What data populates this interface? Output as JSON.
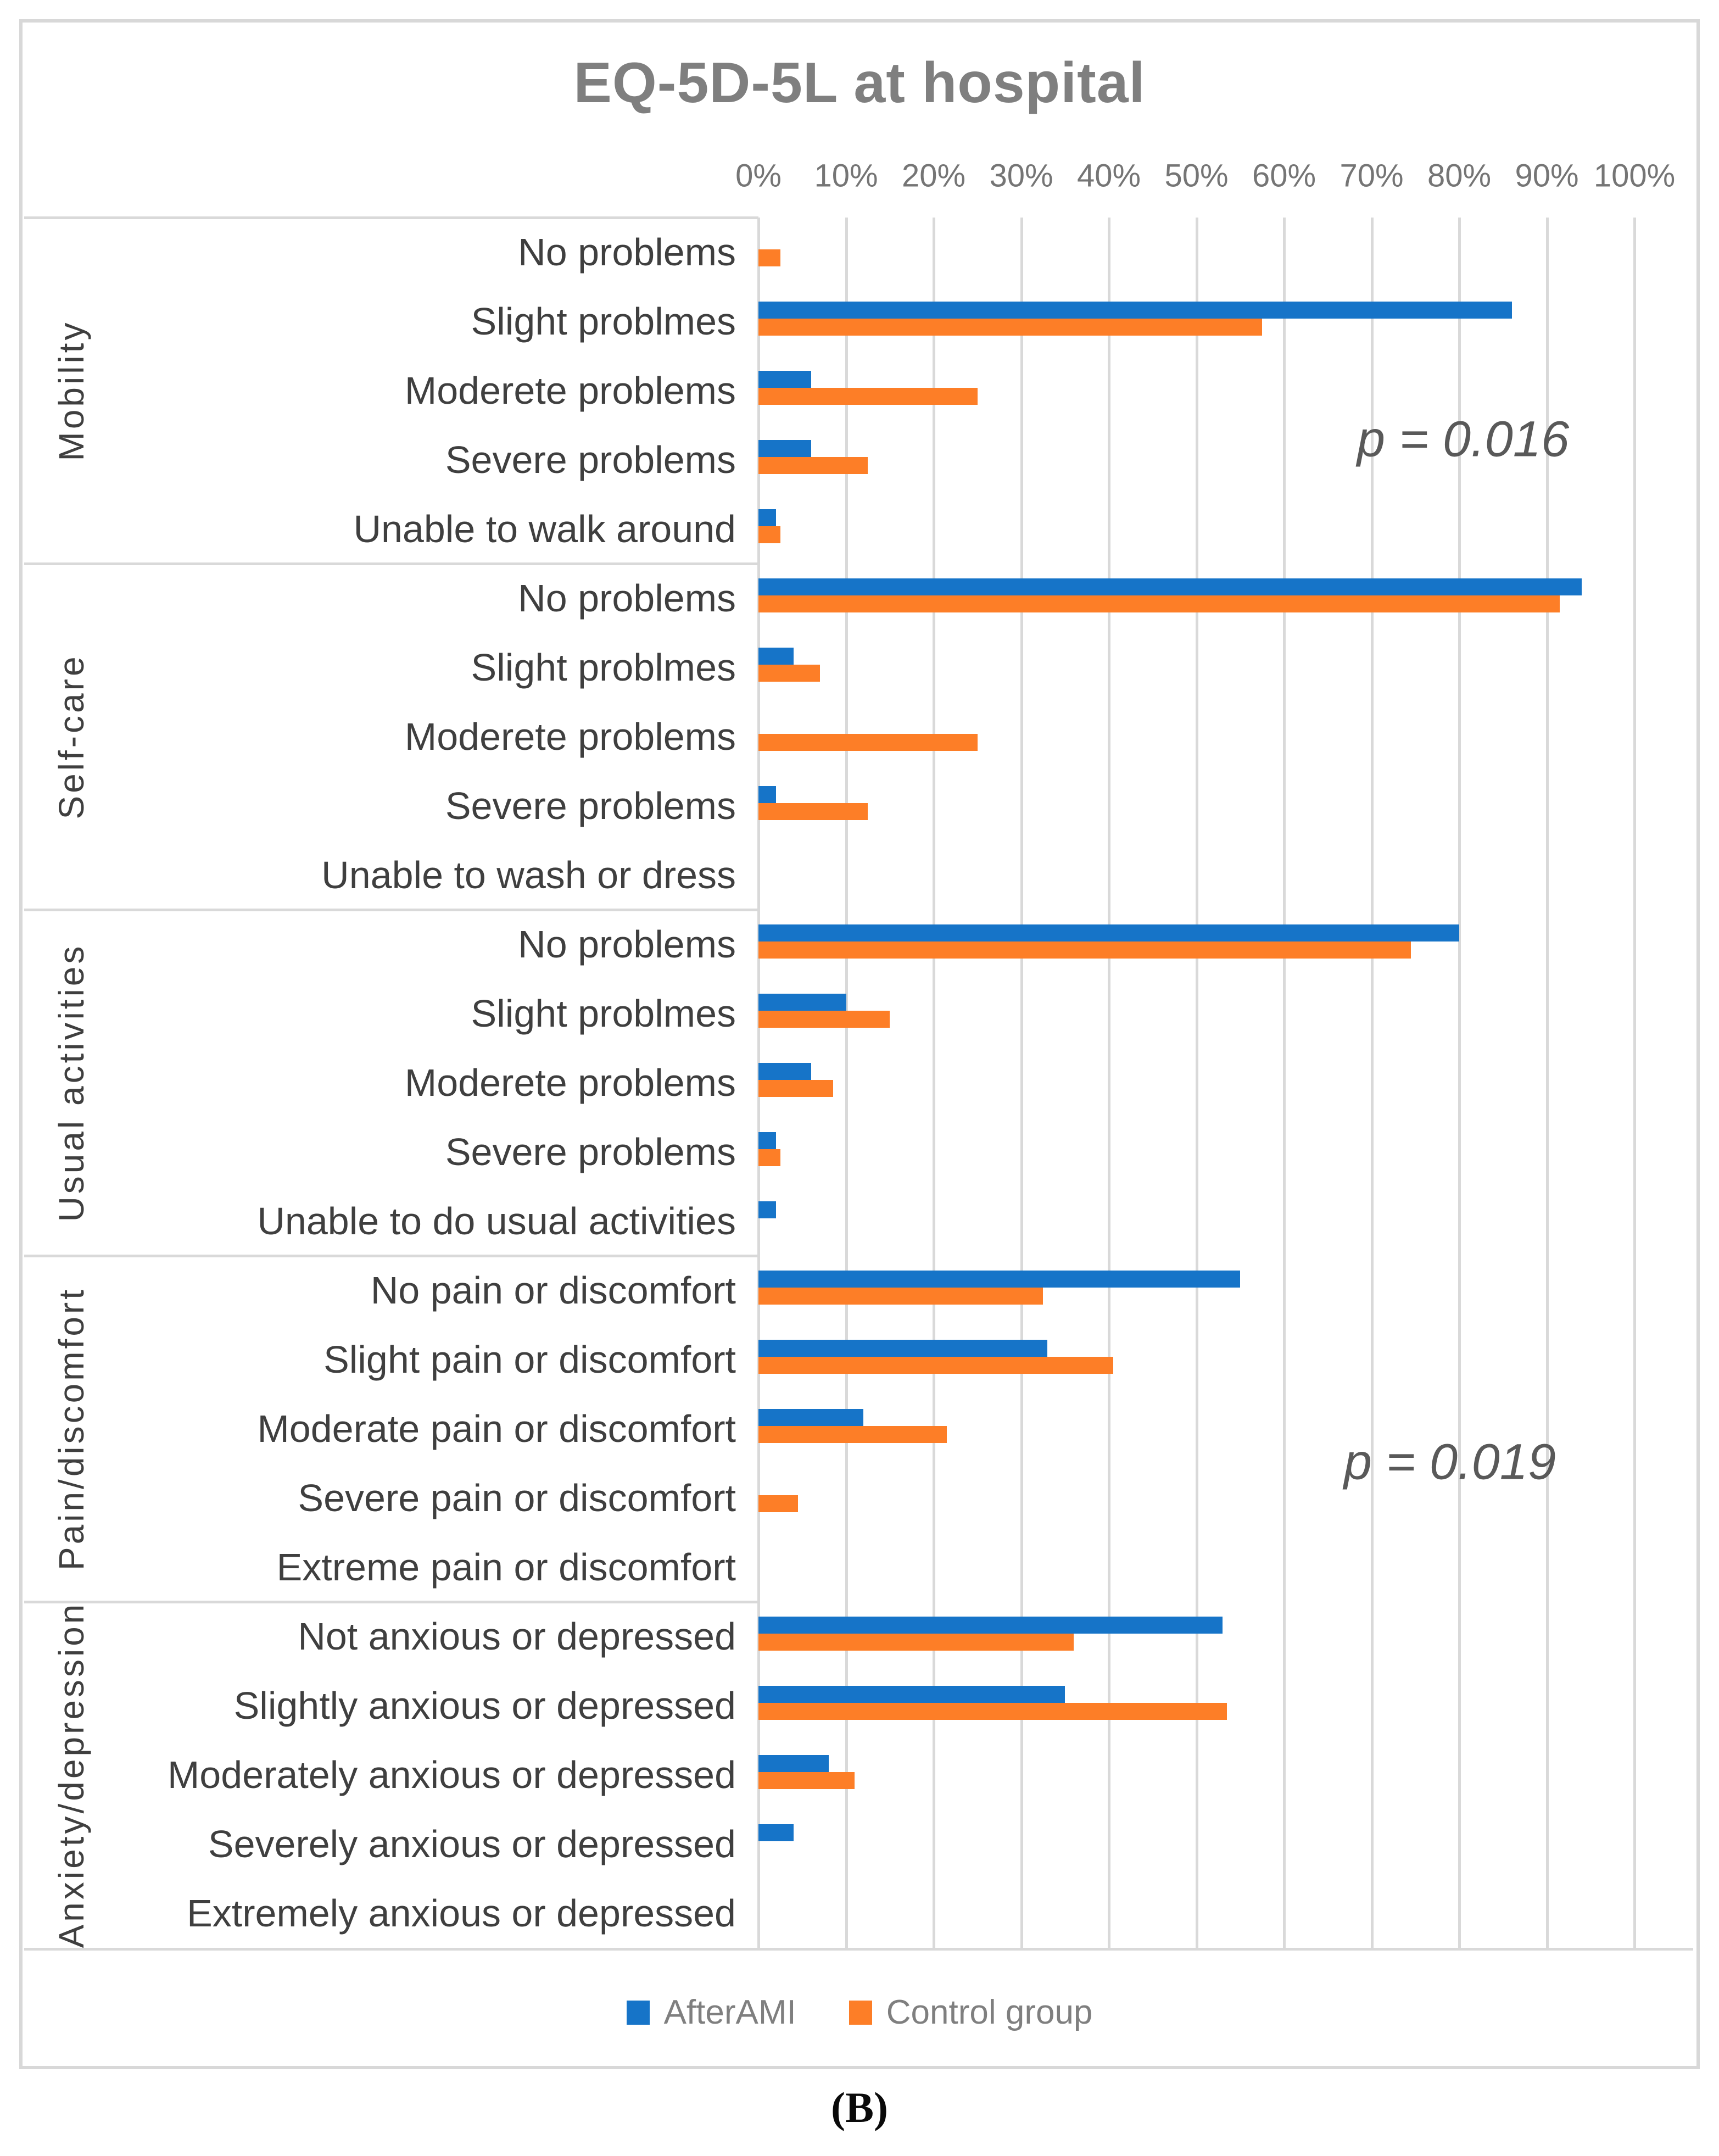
{
  "figure": {
    "panel_label": "(B)"
  },
  "colors": {
    "series_afterami": "#1674C8",
    "series_control": "#FD7E27",
    "gridline": "#D9D9D9",
    "border": "#D8D8D8",
    "title_text": "#7F7F7F",
    "category_text": "#3F3F3F",
    "tick_text": "#757575",
    "annotation_text": "#595959",
    "legend_text": "#7F7F7F"
  },
  "chart_data": {
    "type": "bar",
    "orientation": "horizontal",
    "title": "EQ-5D-5L at hospital",
    "value_axis": {
      "position": "top",
      "unit": "%",
      "min": 0,
      "max": 100,
      "tick_step": 10,
      "tick_labels": [
        "0%",
        "10%",
        "20%",
        "30%",
        "40%",
        "50%",
        "60%",
        "70%",
        "80%",
        "90%",
        "100%"
      ]
    },
    "grid": "vertical-only",
    "legend_position": "bottom",
    "series": [
      {
        "name": "AfterAMI",
        "color": "#1674C8"
      },
      {
        "name": "Control group",
        "color": "#FD7E27"
      }
    ],
    "sections": [
      {
        "dimension": "Mobility",
        "rows": [
          {
            "label": "No problems",
            "values": [
              0,
              2.5
            ]
          },
          {
            "label": "Slight problmes",
            "values": [
              86,
              57.5
            ]
          },
          {
            "label": "Moderete problems",
            "values": [
              6,
              25
            ]
          },
          {
            "label": "Severe problems",
            "values": [
              6,
              12.5
            ]
          },
          {
            "label": "Unable to walk around",
            "values": [
              2,
              2.5
            ]
          }
        ]
      },
      {
        "dimension": "Self-care",
        "rows": [
          {
            "label": "No problems",
            "values": [
              94,
              91.5
            ]
          },
          {
            "label": "Slight problmes",
            "values": [
              4,
              7
            ]
          },
          {
            "label": "Moderete problems",
            "values": [
              0,
              25
            ]
          },
          {
            "label": "Severe problems",
            "values": [
              2,
              12.5
            ]
          },
          {
            "label": "Unable to wash or dress",
            "values": [
              0,
              0
            ]
          }
        ]
      },
      {
        "dimension": "Usual activities",
        "rows": [
          {
            "label": "No problems",
            "values": [
              80,
              74.5
            ]
          },
          {
            "label": "Slight problmes",
            "values": [
              10,
              15
            ]
          },
          {
            "label": "Moderete problems",
            "values": [
              6,
              8.5
            ]
          },
          {
            "label": "Severe problems",
            "values": [
              2,
              2.5
            ]
          },
          {
            "label": "Unable to do usual activities",
            "values": [
              2,
              0
            ]
          }
        ]
      },
      {
        "dimension": "Pain/discomfort",
        "rows": [
          {
            "label": "No pain or discomfort",
            "values": [
              55,
              32.5
            ]
          },
          {
            "label": "Slight pain or discomfort",
            "values": [
              33,
              40.5
            ]
          },
          {
            "label": "Moderate pain or discomfort",
            "values": [
              12,
              21.5
            ]
          },
          {
            "label": "Severe pain or discomfort",
            "values": [
              0,
              4.5
            ]
          },
          {
            "label": "Extreme pain or discomfort",
            "values": [
              0,
              0
            ]
          }
        ]
      },
      {
        "dimension": "Anxiety/depression",
        "rows": [
          {
            "label": "Not anxious or depressed",
            "values": [
              53,
              36
            ]
          },
          {
            "label": "Slightly anxious or depressed",
            "values": [
              35,
              53.5
            ]
          },
          {
            "label": "Moderately anxious or depressed",
            "values": [
              8,
              11
            ]
          },
          {
            "label": "Severely anxious or depressed",
            "values": [
              4,
              0
            ]
          },
          {
            "label": "Extremely anxious or depressed",
            "values": [
              0,
              0
            ]
          }
        ]
      }
    ],
    "annotations": [
      {
        "text": "p = 0.016",
        "section": "Mobility"
      },
      {
        "text": "p = 0.019",
        "section": "Pain/discomfort"
      }
    ]
  }
}
